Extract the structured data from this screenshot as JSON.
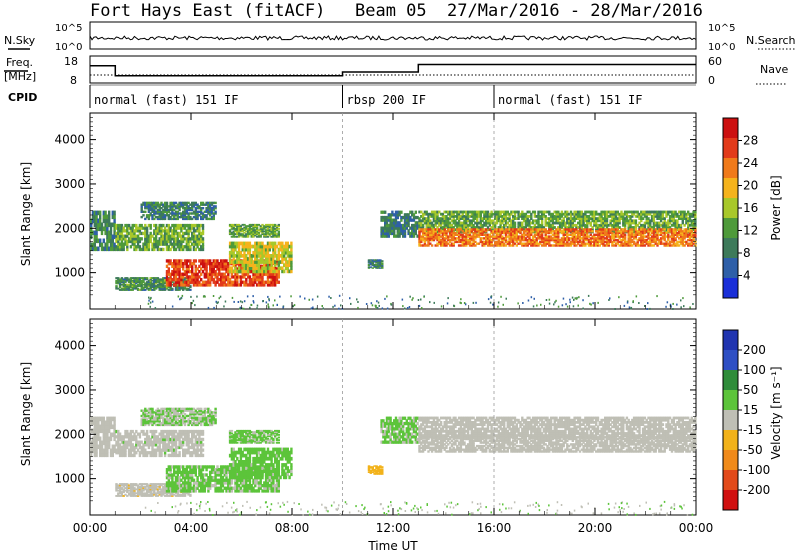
{
  "header": {
    "site": "Fort Hays East (fitACF)",
    "beam": "Beam 05",
    "dates": "27/Mar/2016 - 28/Mar/2016"
  },
  "labels": {
    "nsky": "N.Sky",
    "nsearch": "N.Search",
    "freq": "Freq.",
    "freq_unit": "[MHz]",
    "nave": "Nave",
    "cpid": "CPID",
    "ylabel": "Slant Range [km]",
    "xlabel": "Time UT",
    "power_label": "Power [dB]",
    "velocity_label": "Velocity [m s⁻¹]"
  },
  "noise_axis": {
    "left_ticks": [
      "10^5",
      "10^0"
    ],
    "right_ticks": [
      "10^5",
      "10^0"
    ]
  },
  "freq_axis": {
    "left_ticks": [
      "18",
      "8"
    ],
    "right_ticks": [
      "60",
      "0"
    ]
  },
  "cpid_segments": [
    {
      "label": "normal (fast) 151 IF",
      "start": 0,
      "end": 10
    },
    {
      "label": "rbsp 200 IF",
      "start": 10,
      "end": 16
    },
    {
      "label": "normal (fast) 151 IF",
      "start": 16,
      "end": 24
    }
  ],
  "colors": {
    "power_scale": [
      "#1a2fd8",
      "#2e5fa8",
      "#3d7a5a",
      "#4e9a3a",
      "#a8c82a",
      "#f5b31c",
      "#f07a1a",
      "#e23a1a",
      "#cc1010"
    ],
    "velocity_scale": [
      "#2034b0",
      "#2e4fc4",
      "#2f8c3a",
      "#5cc43a",
      "#bfbfb5",
      "#f2b21a",
      "#f08a1a",
      "#e24a1a",
      "#d01010"
    ]
  },
  "power_colorbar": {
    "ticks": [
      "28",
      "24",
      "20",
      "16",
      "12",
      "8",
      "4"
    ]
  },
  "velocity_colorbar": {
    "ticks": [
      "200",
      "100",
      "50",
      "15",
      "-15",
      "-50",
      "-100",
      "-200"
    ]
  },
  "chart_data": {
    "type": "heatmap",
    "x_ticks": [
      "00:00",
      "04:00",
      "08:00",
      "12:00",
      "16:00",
      "20:00",
      "00:00"
    ],
    "x_range_hours": [
      0,
      24
    ],
    "y_ticks": [
      "1000",
      "2000",
      "3000",
      "4000"
    ],
    "y_range_km": [
      180,
      4600
    ],
    "power_range_db": [
      0,
      30
    ],
    "velocity_range_ms": [
      -250,
      250
    ],
    "freq_steps": [
      {
        "start": 0,
        "end": 1,
        "value": 14.5
      },
      {
        "start": 1,
        "end": 10,
        "value": 10.5
      },
      {
        "start": 10,
        "end": 13,
        "value": 12
      },
      {
        "start": 13,
        "end": 24,
        "value": 15
      }
    ],
    "backscatter_regions": [
      {
        "t0": 0.0,
        "t1": 1.0,
        "r0": 1500,
        "r1": 2400,
        "power": 9,
        "velocity": 0
      },
      {
        "t0": 1.0,
        "t1": 4.5,
        "r0": 1500,
        "r1": 2100,
        "power": 12,
        "velocity": 10
      },
      {
        "t0": 2.0,
        "t1": 5.0,
        "r0": 2200,
        "r1": 2600,
        "power": 8,
        "velocity": 30
      },
      {
        "t0": 1.0,
        "t1": 4.0,
        "r0": 600,
        "r1": 900,
        "power": 10,
        "velocity": -10
      },
      {
        "t0": 3.0,
        "t1": 7.5,
        "r0": 700,
        "r1": 1300,
        "power": 25,
        "velocity": 40
      },
      {
        "t0": 5.5,
        "t1": 8.0,
        "r0": 1000,
        "r1": 1700,
        "power": 16,
        "velocity": 45
      },
      {
        "t0": 5.5,
        "t1": 7.5,
        "r0": 1800,
        "r1": 2100,
        "power": 12,
        "velocity": 40
      },
      {
        "t0": 11.0,
        "t1": 11.6,
        "r0": 1100,
        "r1": 1300,
        "power": 8,
        "velocity": -60
      },
      {
        "t0": 11.5,
        "t1": 13.0,
        "r0": 1800,
        "r1": 2400,
        "power": 8,
        "velocity": 35
      },
      {
        "t0": 13.0,
        "t1": 24.0,
        "r0": 1900,
        "r1": 2400,
        "power": 12,
        "velocity": 0
      },
      {
        "t0": 13.0,
        "t1": 24.0,
        "r0": 1600,
        "r1": 2000,
        "power": 22,
        "velocity": 0
      }
    ]
  }
}
